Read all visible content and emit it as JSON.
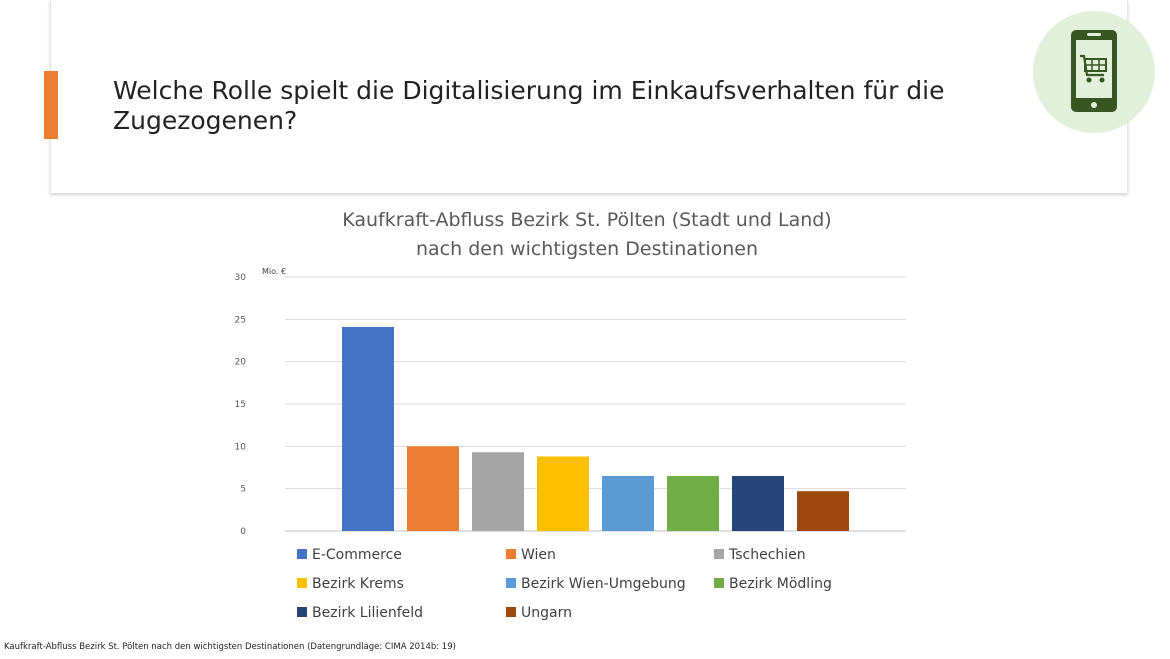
{
  "slide": {
    "title": "Welche Rolle spielt die Digitalisierung im Einkaufsverhalten für die Zugezogenen?",
    "icon": "shopping-cart-phone-icon",
    "accent_color": "#ed7d31",
    "icon_bg_color": "#e2efd9",
    "icon_color": "#375623"
  },
  "chart_data": {
    "type": "bar",
    "title_line1": "Kaufkraft-Abfluss Bezirk St. Pölten (Stadt und Land)",
    "title_line2": "nach den wichtigsten Destinationen",
    "ylabel": "Mio. €",
    "xlabel": "",
    "ylim": [
      0,
      30
    ],
    "yticks": [
      0,
      5,
      10,
      15,
      20,
      25,
      30
    ],
    "grid": true,
    "legend_position": "bottom",
    "series": [
      {
        "name": "E-Commerce",
        "value": 24.1,
        "color": "#4472c4"
      },
      {
        "name": "Wien",
        "value": 10,
        "color": "#ed7d31"
      },
      {
        "name": "Tschechien",
        "value": 9.3,
        "color": "#a5a5a5"
      },
      {
        "name": "Bezirk Krems",
        "value": 8.8,
        "color": "#ffc000"
      },
      {
        "name": "Bezirk Wien-Umgebung",
        "value": 6.5,
        "color": "#5b9bd5"
      },
      {
        "name": "Bezirk Mödling",
        "value": 6.5,
        "color": "#70ad47"
      },
      {
        "name": "Bezirk Lilienfeld",
        "value": 6.5,
        "color": "#264478"
      },
      {
        "name": "Ungarn",
        "value": 4.7,
        "color": "#9e480e"
      }
    ]
  },
  "footnote": "Kaufkraft-Abfluss Bezirk St. Pölten nach den wichtigsten Destinationen (Datengrundlage: CIMA 2014b: 19)"
}
